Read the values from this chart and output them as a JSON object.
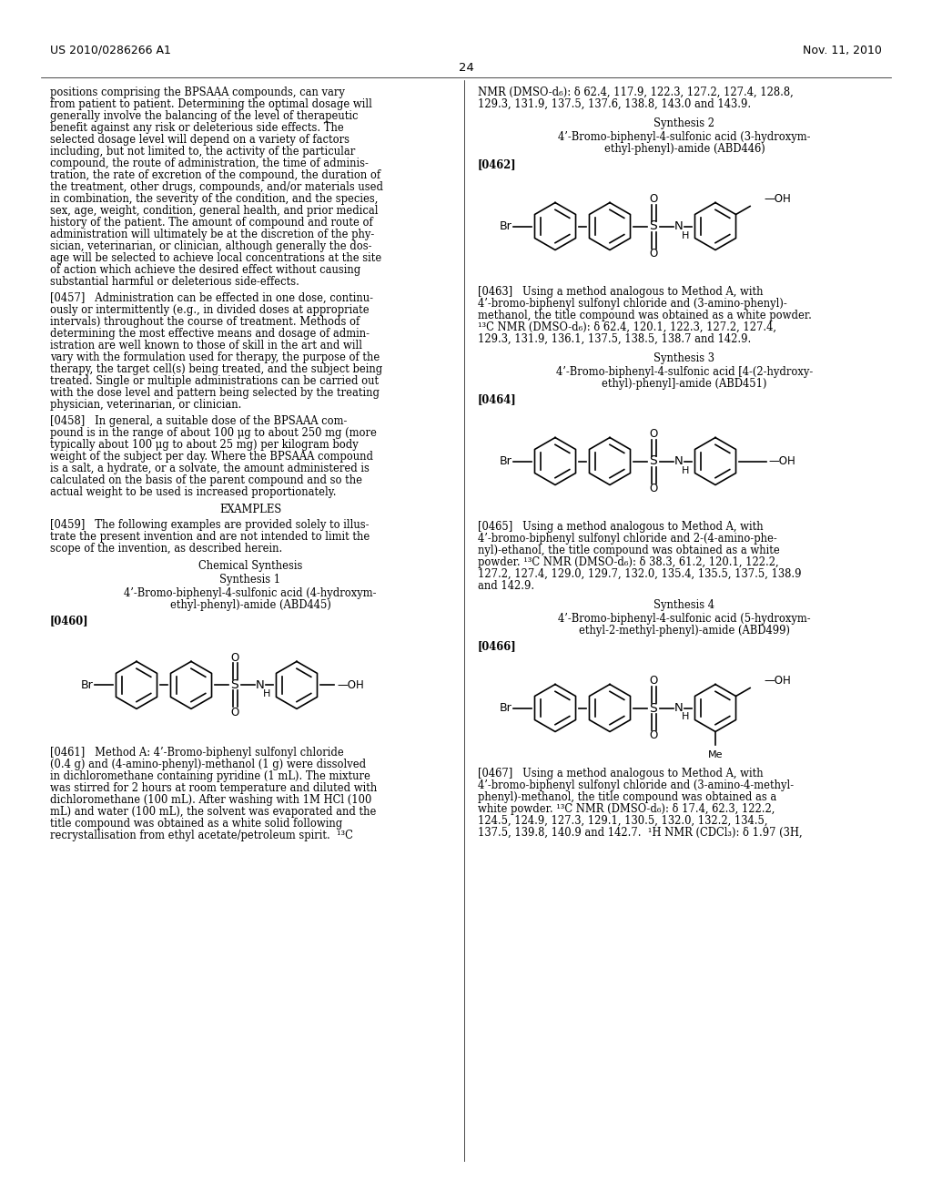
{
  "background_color": "#ffffff",
  "page_header_left": "US 2010/0286266 A1",
  "page_header_right": "Nov. 11, 2010",
  "page_number": "24",
  "left_col_lines": [
    "positions comprising the BPSAAA compounds, can vary",
    "from patient to patient. Determining the optimal dosage will",
    "generally involve the balancing of the level of therapeutic",
    "benefit against any risk or deleterious side effects. The",
    "selected dosage level will depend on a variety of factors",
    "including, but not limited to, the activity of the particular",
    "compound, the route of administration, the time of adminis-",
    "tration, the rate of excretion of the compound, the duration of",
    "the treatment, other drugs, compounds, and/or materials used",
    "in combination, the severity of the condition, and the species,",
    "sex, age, weight, condition, general health, and prior medical",
    "history of the patient. The amount of compound and route of",
    "administration will ultimately be at the discretion of the phy-",
    "sician, veterinarian, or clinician, although generally the dos-",
    "age will be selected to achieve local concentrations at the site",
    "of action which achieve the desired effect without causing",
    "substantial harmful or deleterious side-effects.",
    "",
    "[0457]   Administration can be effected in one dose, continu-",
    "ously or intermittently (e.g., in divided doses at appropriate",
    "intervals) throughout the course of treatment. Methods of",
    "determining the most effective means and dosage of admin-",
    "istration are well known to those of skill in the art and will",
    "vary with the formulation used for therapy, the purpose of the",
    "therapy, the target cell(s) being treated, and the subject being",
    "treated. Single or multiple administrations can be carried out",
    "with the dose level and pattern being selected by the treating",
    "physician, veterinarian, or clinician.",
    "",
    "[0458]   In general, a suitable dose of the BPSAAA com-",
    "pound is in the range of about 100 μg to about 250 mg (more",
    "typically about 100 μg to about 25 mg) per kilogram body",
    "weight of the subject per day. Where the BPSAAA compound",
    "is a salt, a hydrate, or a solvate, the amount administered is",
    "calculated on the basis of the parent compound and so the",
    "actual weight to be used is increased proportionately."
  ],
  "left_col_examples": "EXAMPLES",
  "left_col_0459": [
    "[0459]   The following examples are provided solely to illus-",
    "trate the present invention and are not intended to limit the",
    "scope of the invention, as described herein."
  ],
  "left_col_chemsyn": "Chemical Synthesis",
  "left_col_synth1": "Synthesis 1",
  "left_col_synth1_title": [
    "4’-Bromo-biphenyl-4-sulfonic acid (4-hydroxym-",
    "ethyl-phenyl)-amide (ABD445)"
  ],
  "left_col_0460": "[0460]",
  "left_col_0461": [
    "[0461]   Method A: 4’-Bromo-biphenyl sulfonyl chloride",
    "(0.4 g) and (4-amino-phenyl)-methanol (1 g) were dissolved",
    "in dichloromethane containing pyridine (1 mL). The mixture",
    "was stirred for 2 hours at room temperature and diluted with",
    "dichloromethane (100 mL). After washing with 1M HCl (100",
    "mL) and water (100 mL), the solvent was evaporated and the",
    "title compound was obtained as a white solid following",
    "recrystallisation from ethyl acetate/petroleum spirit.  ¹³C"
  ],
  "right_col_nmr_top": [
    "NMR (DMSO-d₆): δ 62.4, 117.9, 122.3, 127.2, 127.4, 128.8,",
    "129.3, 131.9, 137.5, 137.6, 138.8, 143.0 and 143.9."
  ],
  "right_col_synth2": "Synthesis 2",
  "right_col_synth2_title": [
    "4’-Bromo-biphenyl-4-sulfonic acid (3-hydroxym-",
    "ethyl-phenyl)-amide (ABD446)"
  ],
  "right_col_0462": "[0462]",
  "right_col_0463": [
    "[0463]   Using a method analogous to Method A, with",
    "4’-bromo-biphenyl sulfonyl chloride and (3-amino-phenyl)-",
    "methanol, the title compound was obtained as a white powder.",
    "¹³C NMR (DMSO-d₆): δ 62.4, 120.1, 122.3, 127.2, 127.4,",
    "129.3, 131.9, 136.1, 137.5, 138.5, 138.7 and 142.9."
  ],
  "right_col_synth3": "Synthesis 3",
  "right_col_synth3_title": [
    "4’-Bromo-biphenyl-4-sulfonic acid [4-(2-hydroxy-",
    "ethyl)-phenyl]-amide (ABD451)"
  ],
  "right_col_0464": "[0464]",
  "right_col_0465": [
    "[0465]   Using a method analogous to Method A, with",
    "4’-bromo-biphenyl sulfonyl chloride and 2-(4-amino-phe-",
    "nyl)-ethanol, the title compound was obtained as a white",
    "powder. ¹³C NMR (DMSO-d₆): δ 38.3, 61.2, 120.1, 122.2,",
    "127.2, 127.4, 129.0, 129.7, 132.0, 135.4, 135.5, 137.5, 138.9",
    "and 142.9."
  ],
  "right_col_synth4": "Synthesis 4",
  "right_col_synth4_title": [
    "4’-Bromo-biphenyl-4-sulfonic acid (5-hydroxym-",
    "ethyl-2-methyl-phenyl)-amide (ABD499)"
  ],
  "right_col_0466": "[0466]",
  "right_col_0467": [
    "[0467]   Using a method analogous to Method A, with",
    "4’-bromo-biphenyl sulfonyl chloride and (3-amino-4-methyl-",
    "phenyl)-methanol, the title compound was obtained as a",
    "white powder. ¹³C NMR (DMSO-d₆): δ 17.4, 62.3, 122.2,",
    "124.5, 124.9, 127.3, 129.1, 130.5, 132.0, 132.2, 134.5,",
    "137.5, 139.8, 140.9 and 142.7.  ¹H NMR (CDCl₃): δ 1.97 (3H,"
  ]
}
